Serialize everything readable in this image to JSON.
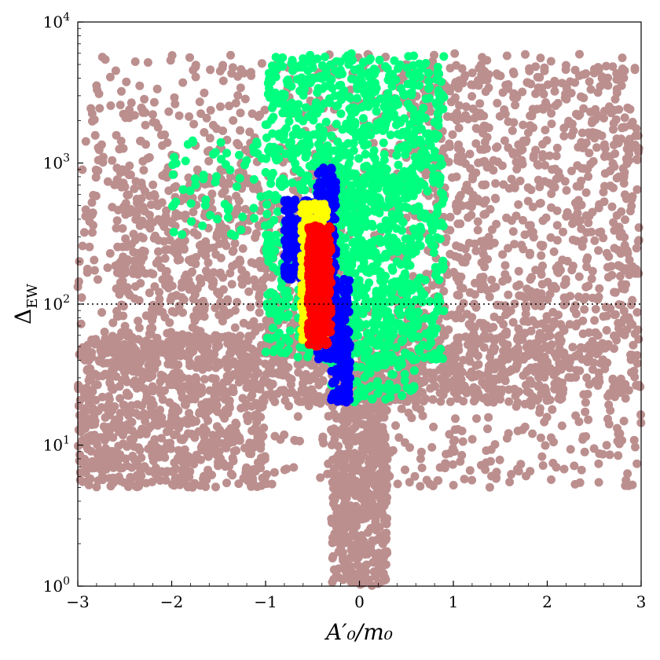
{
  "chart_data": {
    "type": "scatter",
    "title": "",
    "xlabel": "A′₀/m₀",
    "ylabel": "Δ_EW",
    "xlim": [
      -3,
      3
    ],
    "ylim": [
      1,
      10000
    ],
    "yscale": "log",
    "grid": false,
    "legend": "none",
    "x_ticks": [
      -3,
      -2,
      -1,
      0,
      1,
      2,
      3
    ],
    "x_tick_labels": [
      "−3",
      "−2",
      "−1",
      "0",
      "1",
      "2",
      "3"
    ],
    "y_ticks": [
      1,
      10,
      100,
      1000,
      10000
    ],
    "y_tick_labels": [
      {
        "base": "10",
        "exp": "0"
      },
      {
        "base": "10",
        "exp": "1"
      },
      {
        "base": "10",
        "exp": "2"
      },
      {
        "base": "10",
        "exp": "3"
      },
      {
        "base": "10",
        "exp": "4"
      }
    ],
    "reference_line": {
      "y": 100,
      "style": "dotted",
      "color": "#000000"
    },
    "series": [
      {
        "color": "#bc8f8f",
        "regions": [
          {
            "x": [
              -3.0,
              3.0
            ],
            "y": [
              5,
              6000
            ],
            "count": 1400
          },
          {
            "x": [
              -3.0,
              -1.0
            ],
            "y": [
              5,
              60
            ],
            "count": 700
          },
          {
            "x": [
              -2.6,
              -0.4
            ],
            "y": [
              40,
              900
            ],
            "count": 500
          },
          {
            "x": [
              0.4,
              3.0
            ],
            "y": [
              20,
              5000
            ],
            "count": 700
          },
          {
            "x": [
              -0.3,
              0.3
            ],
            "y": [
              1,
              40
            ],
            "count": 600
          },
          {
            "x": [
              -1.0,
              2.2
            ],
            "y": [
              20,
              60
            ],
            "count": 500
          }
        ]
      },
      {
        "color": "#00ff7f",
        "regions": [
          {
            "x": [
              -1.0,
              0.9
            ],
            "y": [
              40,
              6000
            ],
            "count": 1200
          },
          {
            "x": [
              -2.0,
              -1.0
            ],
            "y": [
              300,
              1500
            ],
            "count": 60
          },
          {
            "x": [
              -0.3,
              0.6
            ],
            "y": [
              20,
              1000
            ],
            "count": 300
          }
        ]
      },
      {
        "color": "#0000ff",
        "regions": [
          {
            "x": [
              -0.8,
              -0.5
            ],
            "y": [
              150,
              550
            ],
            "count": 220
          },
          {
            "x": [
              -0.45,
              -0.25
            ],
            "y": [
              40,
              950
            ],
            "count": 260
          },
          {
            "x": [
              -0.3,
              -0.1
            ],
            "y": [
              20,
              150
            ],
            "count": 180
          }
        ]
      },
      {
        "color": "#ffff00",
        "regions": [
          {
            "x": [
              -0.62,
              -0.35
            ],
            "y": [
              55,
              520
            ],
            "count": 320
          }
        ]
      },
      {
        "color": "#ff0000",
        "regions": [
          {
            "x": [
              -0.55,
              -0.3
            ],
            "y": [
              50,
              360
            ],
            "count": 380
          }
        ]
      }
    ]
  }
}
